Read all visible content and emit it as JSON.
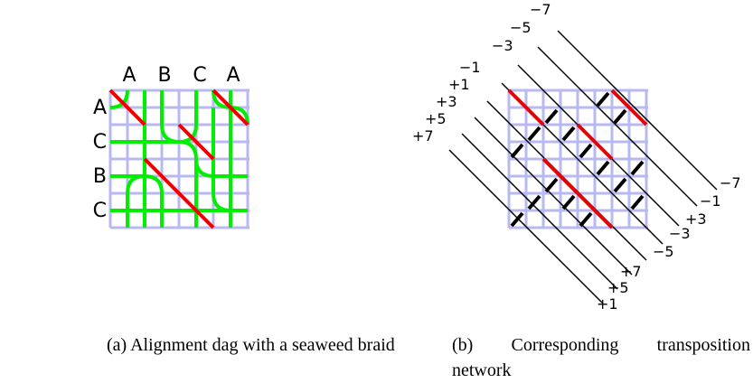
{
  "panel_a": {
    "column_labels": [
      "A",
      "B",
      "C",
      "A"
    ],
    "row_labels": [
      "A",
      "C",
      "B",
      "C"
    ],
    "caption": "(a) Alignment dag with a seaweed braid"
  },
  "panel_b": {
    "top_labels": [
      "+7",
      "+5",
      "+3",
      "+1",
      "−1",
      "−3",
      "−5",
      "−7"
    ],
    "bottom_labels": [
      "+1",
      "+5",
      "+7",
      "−5",
      "−3",
      "+3",
      "−1",
      "−7"
    ],
    "caption_line1": [
      "(b)",
      "Corresponding",
      "transposition"
    ],
    "caption_line2": "network"
  },
  "colors": {
    "grid": "#b9b9f2",
    "seaweed": "#00ee00",
    "match": "#ee0000",
    "wire": "#000000"
  }
}
